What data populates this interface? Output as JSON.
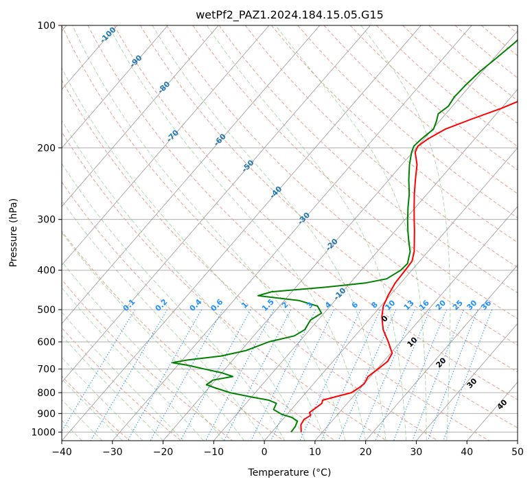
{
  "chart_data": {
    "type": "skew-t",
    "title": "wetPf2_PAZ1.2024.184.15.05.G15",
    "xlabel": "Temperature (°C)",
    "ylabel": "Pressure (hPa)",
    "xlim": [
      -40,
      50
    ],
    "ylim": [
      1050,
      100
    ],
    "y_scale": "log",
    "grid": true,
    "x_ticks": [
      -40,
      -30,
      -20,
      -10,
      0,
      10,
      20,
      30,
      40,
      50
    ],
    "y_ticks": [
      1000,
      900,
      800,
      700,
      600,
      500,
      400,
      300,
      200,
      100
    ],
    "series": [
      {
        "color": "#ff0000",
        "role": "temperature",
        "points": [
          [
            1000,
            5.8
          ],
          [
            960,
            4.5
          ],
          [
            930,
            4.2
          ],
          [
            910,
            4.8
          ],
          [
            895,
            4.1
          ],
          [
            870,
            4.6
          ],
          [
            850,
            5.0
          ],
          [
            835,
            4.6
          ],
          [
            820,
            6.4
          ],
          [
            800,
            9.0
          ],
          [
            780,
            9.6
          ],
          [
            760,
            10.0
          ],
          [
            730,
            9.5
          ],
          [
            700,
            10.2
          ],
          [
            670,
            10.8
          ],
          [
            640,
            10.3
          ],
          [
            600,
            7.6
          ],
          [
            560,
            4.5
          ],
          [
            520,
            2.0
          ],
          [
            490,
            0.5
          ],
          [
            460,
            -0.4
          ],
          [
            430,
            -1.1
          ],
          [
            400,
            -1.3
          ],
          [
            380,
            -1.5
          ],
          [
            360,
            -2.7
          ],
          [
            340,
            -4.4
          ],
          [
            320,
            -6.2
          ],
          [
            300,
            -8.2
          ],
          [
            280,
            -10.3
          ],
          [
            260,
            -12.5
          ],
          [
            240,
            -14.7
          ],
          [
            220,
            -17.0
          ],
          [
            205,
            -19.5
          ],
          [
            198,
            -20.0
          ],
          [
            190,
            -19.2
          ],
          [
            180,
            -17.5
          ],
          [
            170,
            -14.0
          ],
          [
            160,
            -10.0
          ],
          [
            150,
            -6.5
          ],
          [
            140,
            -4.0
          ],
          [
            130,
            -2.0
          ],
          [
            120,
            0.0
          ],
          [
            110,
            2.0
          ],
          [
            100,
            3.0
          ]
        ]
      },
      {
        "color": "#008000",
        "role": "dewpoint",
        "points": [
          [
            1000,
            3.8
          ],
          [
            970,
            3.7
          ],
          [
            940,
            3.2
          ],
          [
            920,
            1.4
          ],
          [
            905,
            -1.0
          ],
          [
            880,
            -3.5
          ],
          [
            850,
            -4.0
          ],
          [
            835,
            -6.0
          ],
          [
            820,
            -10.0
          ],
          [
            800,
            -15.0
          ],
          [
            780,
            -18.5
          ],
          [
            765,
            -21.0
          ],
          [
            745,
            -20.5
          ],
          [
            730,
            -17.2
          ],
          [
            715,
            -20.0
          ],
          [
            700,
            -24.0
          ],
          [
            685,
            -28.0
          ],
          [
            675,
            -31.5
          ],
          [
            665,
            -29.0
          ],
          [
            650,
            -23.0
          ],
          [
            630,
            -19.0
          ],
          [
            600,
            -16.0
          ],
          [
            580,
            -12.0
          ],
          [
            560,
            -11.0
          ],
          [
            530,
            -11.5
          ],
          [
            510,
            -10.5
          ],
          [
            490,
            -12.5
          ],
          [
            475,
            -17.0
          ],
          [
            462,
            -26.0
          ],
          [
            452,
            -24.0
          ],
          [
            440,
            -14.0
          ],
          [
            430,
            -7.0
          ],
          [
            420,
            -3.5
          ],
          [
            400,
            -2.2
          ],
          [
            385,
            -2.0
          ],
          [
            375,
            -2.6
          ],
          [
            360,
            -3.5
          ],
          [
            340,
            -5.5
          ],
          [
            320,
            -7.5
          ],
          [
            300,
            -9.5
          ],
          [
            280,
            -11.5
          ],
          [
            260,
            -13.5
          ],
          [
            240,
            -16.0
          ],
          [
            220,
            -18.5
          ],
          [
            205,
            -20.2
          ],
          [
            198,
            -20.8
          ],
          [
            190,
            -20.5
          ],
          [
            180,
            -19.8
          ],
          [
            172,
            -20.6
          ],
          [
            165,
            -21.5
          ],
          [
            158,
            -20.8
          ],
          [
            150,
            -21.2
          ],
          [
            140,
            -21.0
          ],
          [
            130,
            -20.5
          ],
          [
            120,
            -19.5
          ],
          [
            110,
            -18.5
          ],
          [
            100,
            -18.0
          ]
        ]
      }
    ],
    "dry_adiabat_labels": [
      "-100",
      "-90",
      "-80",
      "-70",
      "-60",
      "-50",
      "-40",
      "-30",
      "-20",
      "-10"
    ],
    "mixing_ratio_labels": [
      "0.1",
      "0.2",
      "0.4",
      "0.6",
      "1",
      "1.5",
      "2",
      "3",
      "4",
      "6",
      "8",
      "10",
      "13",
      "16",
      "20",
      "25",
      "30",
      "36"
    ],
    "moist_adiabat_labels": [
      "0",
      "10",
      "20",
      "30",
      "40"
    ],
    "colors": {
      "temperature": "#ff0000",
      "dewpoint": "#008000",
      "dry_adiabat": "#e8a090",
      "moist_adiabat": "#5cb85c",
      "mixing_ratio": "#1e90ff",
      "isotherm": "#808080",
      "isobar": "#b0b0b0"
    }
  }
}
